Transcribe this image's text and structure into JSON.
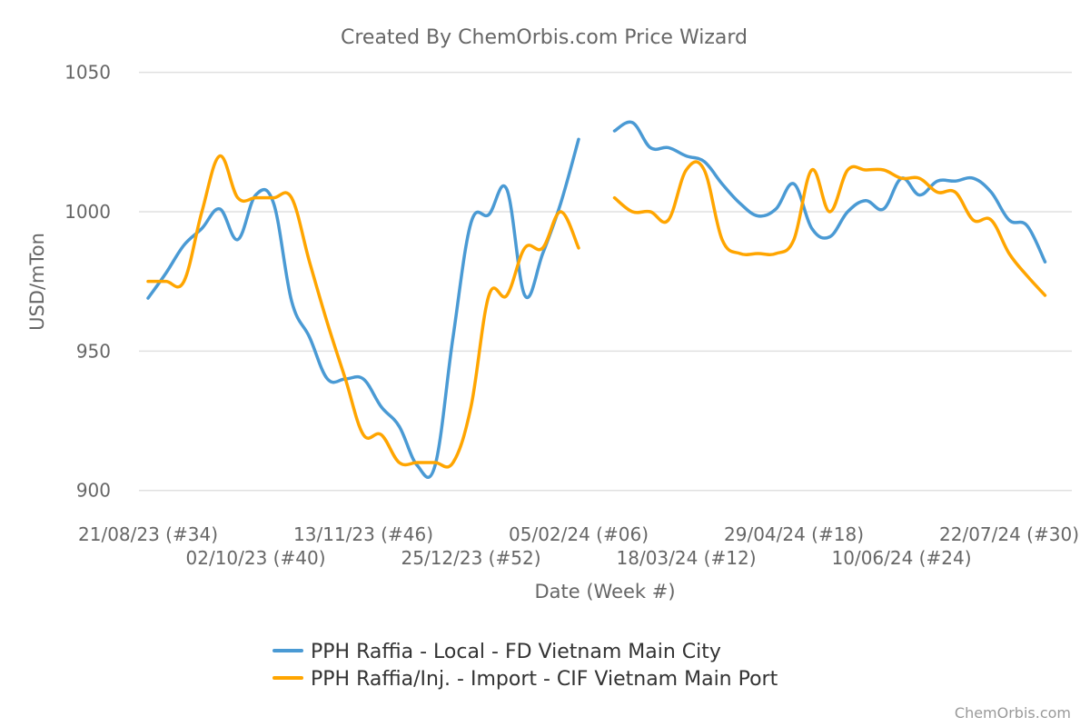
{
  "chart_data": {
    "type": "line",
    "title": "Created By ChemOrbis.com Price Wizard",
    "xlabel": "Date (Week #)",
    "ylabel": "USD/mTon",
    "ylim": [
      895,
      1050
    ],
    "yticks": [
      900,
      950,
      1000,
      1050
    ],
    "grid": true,
    "legend_position": "bottom",
    "x_tick_labels": [
      {
        "index": 0,
        "label": "21/08/23 (#34)"
      },
      {
        "index": 6,
        "label": "02/10/23 (#40)"
      },
      {
        "index": 12,
        "label": "13/11/23 (#46)"
      },
      {
        "index": 18,
        "label": "25/12/23 (#52)"
      },
      {
        "index": 24,
        "label": "05/02/24 (#06)"
      },
      {
        "index": 30,
        "label": "18/03/24 (#12)"
      },
      {
        "index": 36,
        "label": "29/04/24 (#18)"
      },
      {
        "index": 42,
        "label": "10/06/24 (#24)"
      },
      {
        "index": 48,
        "label": "22/07/24 (#30)"
      }
    ],
    "series": [
      {
        "name": "PPH Raffia - Local - FD Vietnam Main City",
        "color": "#4a9ad4",
        "values": [
          969,
          978,
          988,
          994,
          1001,
          990,
          1006,
          1003,
          968,
          955,
          940,
          940,
          940,
          930,
          923,
          909,
          909,
          955,
          996,
          999,
          1008,
          970,
          985,
          1003,
          1026,
          null,
          1029,
          1032,
          1023,
          1023,
          1020,
          1018,
          1010,
          1003,
          998.5,
          1001,
          1010,
          994,
          991,
          1000,
          1004,
          1001,
          1012,
          1006,
          1011,
          1011,
          1012,
          1007,
          997,
          995,
          982
        ]
      },
      {
        "name": "PPH Raffia/Inj. - Import - CIF Vietnam Main Port",
        "color": "#ffa500",
        "values": [
          975,
          975,
          975,
          1000,
          1020,
          1005,
          1005,
          1005,
          1005,
          982,
          960,
          940,
          920,
          920,
          910,
          910,
          910,
          910,
          930,
          970,
          970,
          987,
          987,
          1000,
          987,
          null,
          1005,
          1000,
          1000,
          997,
          1015,
          1015,
          990,
          985,
          985,
          985,
          990,
          1015,
          1000,
          1015,
          1015,
          1015,
          1012,
          1012,
          1007,
          1007,
          997,
          997,
          985,
          977,
          970
        ]
      }
    ]
  },
  "watermark": "ChemOrbis.com"
}
